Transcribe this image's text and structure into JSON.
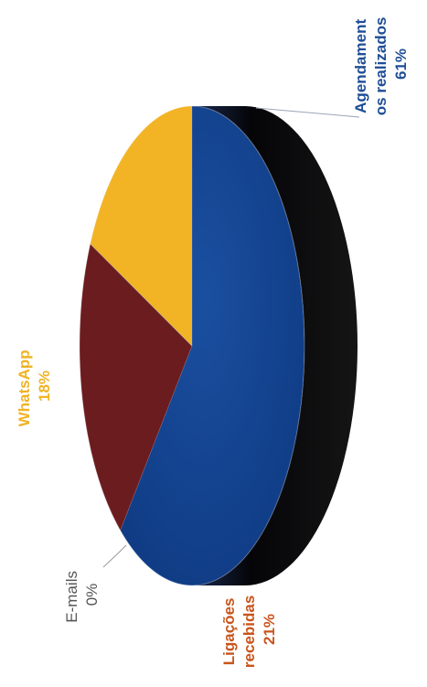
{
  "chart_data": {
    "type": "pie",
    "style": "3d",
    "orientation": "rotated-90-ccw",
    "slices": [
      {
        "label_lines": [
          "Agendament",
          "os realizados"
        ],
        "percent_label": "61%",
        "value": 61,
        "color": "#12408e",
        "side_color": "#0e1a33"
      },
      {
        "label_lines": [
          "Ligações",
          "recebidas"
        ],
        "percent_label": "21%",
        "value": 21,
        "color": "#6b1c1f",
        "side_color": "#4d1214"
      },
      {
        "label_lines": [
          "E-mails"
        ],
        "percent_label": "0%",
        "value": 0,
        "color": "#9a9a9a",
        "side_color": "#6a6a6a"
      },
      {
        "label_lines": [
          "WhatsApp"
        ],
        "percent_label": "18%",
        "value": 18,
        "color": "#f2b325",
        "side_color": "#a87a12"
      }
    ],
    "label_colors": [
      "#1f4e96",
      "#c8551d",
      "#555555",
      "#f0b324"
    ]
  }
}
